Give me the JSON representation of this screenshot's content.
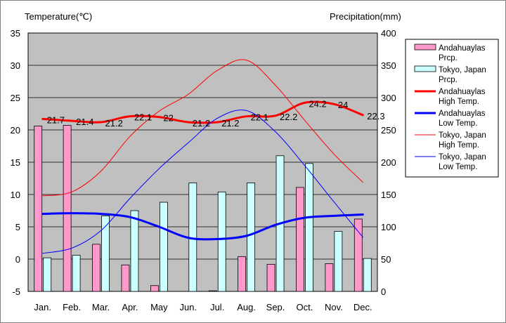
{
  "chart_data": {
    "type": "bar",
    "title": "",
    "left_axis_label": "Temperature(℃)",
    "right_axis_label": "Precipitation(mm)",
    "categories": [
      "Jan.",
      "Feb.",
      "Mar.",
      "Apr.",
      "May",
      "Jun.",
      "Jul.",
      "Aug.",
      "Sep.",
      "Oct.",
      "Nov.",
      "Dec."
    ],
    "y_left": {
      "min": -5,
      "max": 35,
      "ticks": [
        -5,
        0,
        5,
        10,
        15,
        20,
        25,
        30,
        35
      ]
    },
    "y_right": {
      "min": 0,
      "max": 400,
      "ticks": [
        0,
        50,
        100,
        150,
        200,
        250,
        300,
        350,
        400
      ]
    },
    "grid": true,
    "legend_position": "right",
    "bar_series": [
      {
        "name": "Andahuaylas\nPrcp.",
        "axis": "right",
        "color": "#ff99cc",
        "values": [
          256,
          257,
          73,
          41,
          9,
          0,
          1,
          54,
          42,
          161,
          43,
          112
        ]
      },
      {
        "name": "Tokyo, Japan\nPrcp.",
        "axis": "right",
        "color": "#ccffff",
        "values": [
          52,
          56,
          117,
          125,
          138,
          168,
          154,
          168,
          210,
          198,
          93,
          51
        ]
      }
    ],
    "line_series": [
      {
        "name": "Andahuaylas\nHigh Temp.",
        "axis": "left",
        "color": "#ff0000",
        "width": 3,
        "values": [
          21.7,
          21.4,
          21.2,
          22.1,
          22,
          21.2,
          21.2,
          22.1,
          22.2,
          24.2,
          24,
          22.3
        ],
        "labels": [
          "21.7",
          "21.4",
          "21.2",
          "22.1",
          "22",
          "21.2",
          "21.2",
          "22.1",
          "22.2",
          "24.2",
          "24",
          "22.3"
        ]
      },
      {
        "name": "Andahuaylas\nLow Temp.",
        "axis": "left",
        "color": "#0000ff",
        "width": 3,
        "values": [
          7.0,
          7.1,
          7.0,
          6.5,
          5.0,
          3.3,
          3.1,
          3.6,
          5.3,
          6.4,
          6.7,
          6.9
        ]
      },
      {
        "name": "Tokyo, Japan\nHigh Temp.",
        "axis": "left",
        "color": "#ff0000",
        "width": 1,
        "values": [
          9.8,
          10.4,
          13.6,
          19.0,
          22.9,
          25.5,
          29.2,
          30.8,
          26.9,
          21.5,
          16.3,
          11.9
        ]
      },
      {
        "name": "Tokyo, Japan\nLow Temp.",
        "axis": "left",
        "color": "#0000ff",
        "width": 1,
        "values": [
          0.9,
          1.7,
          4.4,
          9.4,
          14.0,
          18.0,
          21.8,
          23.0,
          19.7,
          14.5,
          8.9,
          3.4
        ]
      }
    ]
  }
}
